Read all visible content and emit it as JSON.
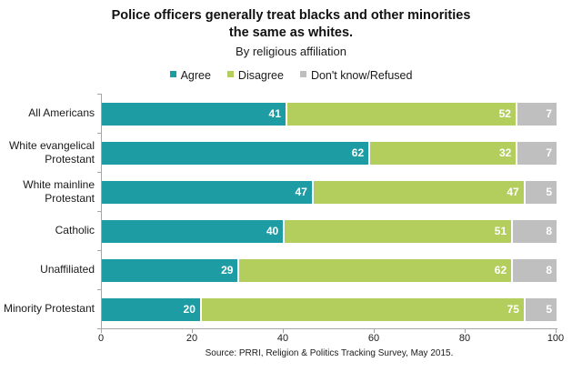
{
  "chart_data": {
    "type": "bar",
    "orientation": "horizontal_stacked",
    "title": "Police officers generally treat blacks and other minorities the same as whites.",
    "title_lines": [
      "Police officers generally treat blacks and other minorities",
      "the same as whites."
    ],
    "subtitle": "By religious affiliation",
    "categories": [
      "All Americans",
      "White evangelical Protestant",
      "White mainline Protestant",
      "Catholic",
      "Unaffiliated",
      "Minority Protestant"
    ],
    "category_label_lines": [
      [
        "All Americans"
      ],
      [
        "White evangelical",
        "Protestant"
      ],
      [
        "White mainline",
        "Protestant"
      ],
      [
        "Catholic"
      ],
      [
        "Unaffiliated"
      ],
      [
        "Minority Protestant"
      ]
    ],
    "series": [
      {
        "name": "Agree",
        "color": "#1E9CA4",
        "values": [
          41,
          62,
          47,
          40,
          29,
          20
        ]
      },
      {
        "name": "Disagree",
        "color": "#B4CE5E",
        "values": [
          52,
          32,
          47,
          51,
          62,
          75
        ]
      },
      {
        "name": "Don't know/Refused",
        "color": "#BFBFBF",
        "values": [
          7,
          7,
          5,
          8,
          8,
          5
        ]
      }
    ],
    "x_ticks": [
      0,
      20,
      40,
      60,
      80,
      100
    ],
    "xlim": [
      0,
      100
    ],
    "grid": false,
    "legend_position": "top_center",
    "value_labels": "inside_end_white",
    "source": "Source: PRRI, Religion & Politics Tracking Survey, May 2015."
  },
  "colors": {
    "agree": "#1E9CA4",
    "disagree": "#B4CE5E",
    "dont_know_refused": "#BFBFBF",
    "axis": "#A6A6A6",
    "text": "#1A1A1A",
    "value_label": "#FFFFFF",
    "background": "#FFFFFF"
  }
}
